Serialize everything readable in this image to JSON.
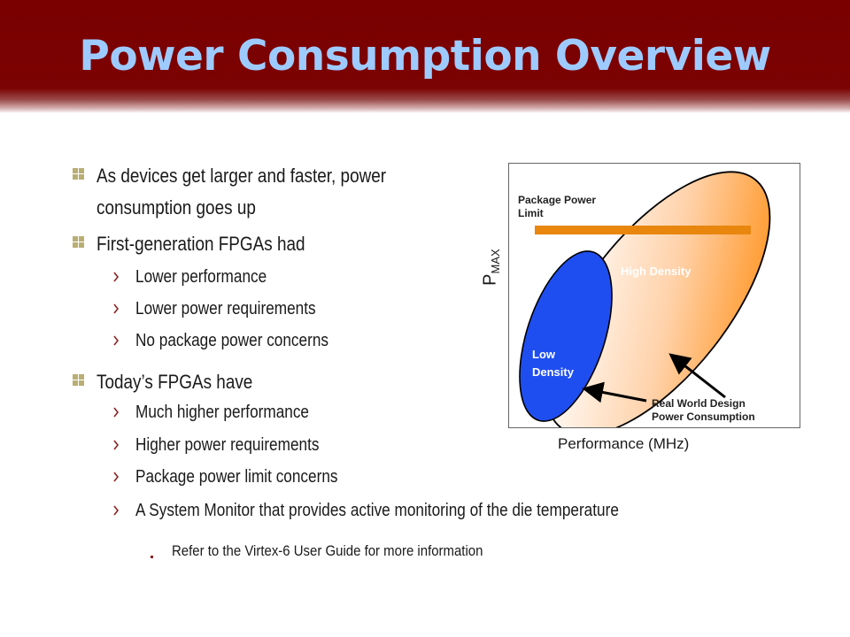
{
  "slide": {
    "title": "Power Consumption Overview",
    "bullets": {
      "b1": "As devices get larger and faster, power",
      "b1_cont": "consumption goes up",
      "b2": "First-generation FPGAs had",
      "b2_subs": [
        "Lower performance",
        "Lower power requirements",
        "No package power concerns"
      ],
      "b3": "Today’s FPGAs have",
      "b3_subs": [
        "Much higher performance",
        "Higher power requirements",
        "Package power limit concerns",
        "A System Monitor that provides active monitoring of the die temperature"
      ],
      "b3_sub3_detail": "Refer to the Virtex-6 User Guide for more information"
    }
  },
  "diagram": {
    "package_limit": [
      "Package Power",
      "Limit"
    ],
    "high_density": "High Density",
    "low_density": [
      "Low",
      "Density"
    ],
    "real_world": [
      "Real World Design",
      "Power Consumption"
    ],
    "xlabel": "Performance (MHz)",
    "ylabel_main": "P",
    "ylabel_sub": "MAX"
  },
  "colors": {
    "header": "#7c0303",
    "title": "#9ecbff",
    "bullet_mark": "#b9ae74",
    "high_density_fill": "#ff9a2e",
    "low_density_fill": "#1f4ef0",
    "limit_bar": "#e8860e"
  }
}
